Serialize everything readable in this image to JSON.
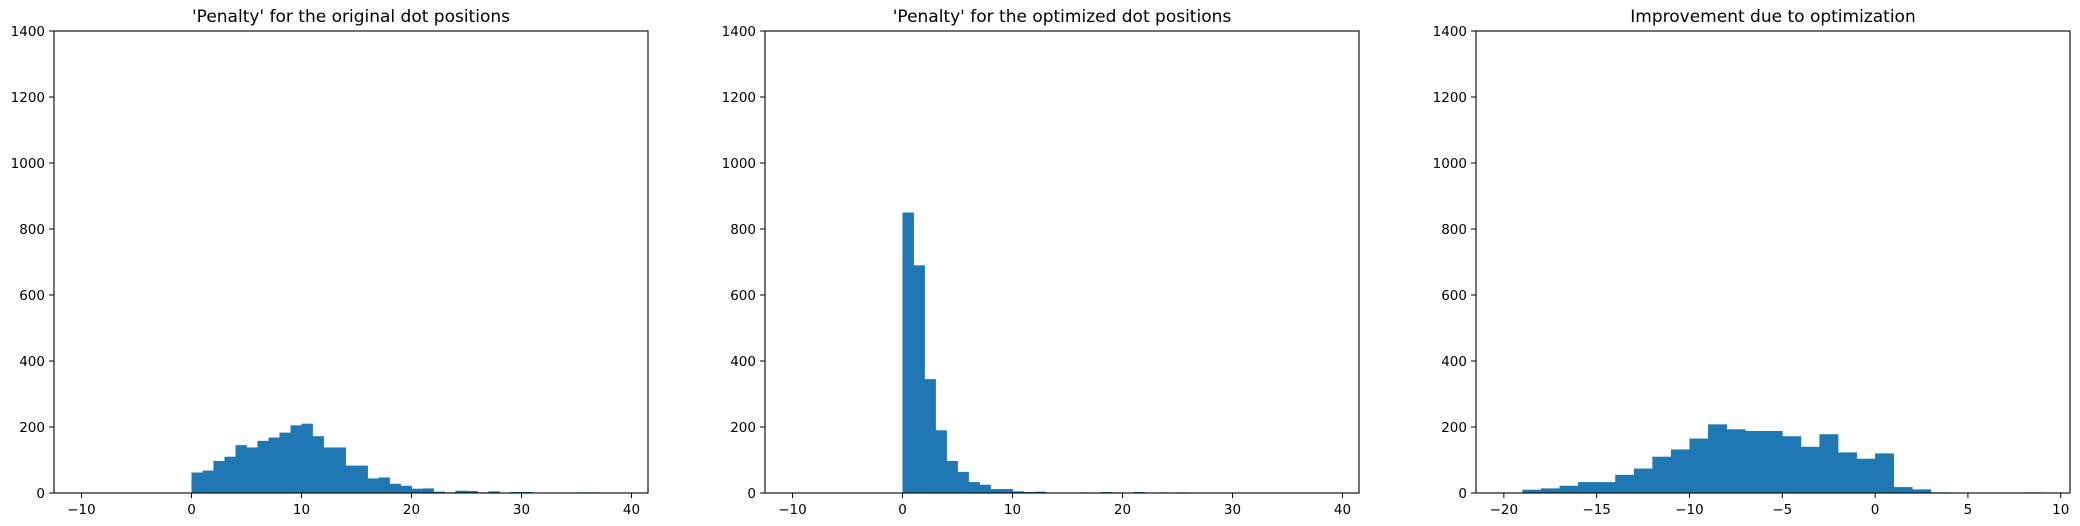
{
  "chart_data": [
    {
      "type": "bar",
      "title": "'Penalty' for the original dot positions",
      "xlabel": "",
      "ylabel": "",
      "xlim": [
        -12.5,
        41.5
      ],
      "ylim": [
        0,
        1400
      ],
      "xticks": [
        -10,
        0,
        10,
        20,
        30,
        40
      ],
      "yticks": [
        0,
        200,
        400,
        600,
        800,
        1000,
        1200,
        1400
      ],
      "bin_width": 1,
      "bins": [
        {
          "x0": 0,
          "value": 62
        },
        {
          "x0": 1,
          "value": 68
        },
        {
          "x0": 2,
          "value": 97
        },
        {
          "x0": 3,
          "value": 110
        },
        {
          "x0": 4,
          "value": 145
        },
        {
          "x0": 5,
          "value": 138
        },
        {
          "x0": 6,
          "value": 158
        },
        {
          "x0": 7,
          "value": 168
        },
        {
          "x0": 8,
          "value": 183
        },
        {
          "x0": 9,
          "value": 205
        },
        {
          "x0": 10,
          "value": 210
        },
        {
          "x0": 11,
          "value": 172
        },
        {
          "x0": 12,
          "value": 138
        },
        {
          "x0": 13,
          "value": 138
        },
        {
          "x0": 14,
          "value": 83
        },
        {
          "x0": 15,
          "value": 83
        },
        {
          "x0": 16,
          "value": 44
        },
        {
          "x0": 17,
          "value": 47
        },
        {
          "x0": 18,
          "value": 28
        },
        {
          "x0": 19,
          "value": 22
        },
        {
          "x0": 20,
          "value": 13
        },
        {
          "x0": 21,
          "value": 14
        },
        {
          "x0": 22,
          "value": 4
        },
        {
          "x0": 23,
          "value": 2
        },
        {
          "x0": 24,
          "value": 7
        },
        {
          "x0": 25,
          "value": 6
        },
        {
          "x0": 26,
          "value": 2
        },
        {
          "x0": 27,
          "value": 5
        },
        {
          "x0": 28,
          "value": 1
        },
        {
          "x0": 29,
          "value": 3
        },
        {
          "x0": 30,
          "value": 3
        },
        {
          "x0": 31,
          "value": 1
        },
        {
          "x0": 32,
          "value": 0
        },
        {
          "x0": 33,
          "value": 0
        },
        {
          "x0": 34,
          "value": 0
        },
        {
          "x0": 35,
          "value": 2
        },
        {
          "x0": 36,
          "value": 2
        }
      ],
      "color": "#1f77b4"
    },
    {
      "type": "bar",
      "title": "'Penalty' for the optimized dot positions",
      "xlabel": "",
      "ylabel": "",
      "xlim": [
        -12.5,
        41.5
      ],
      "ylim": [
        0,
        1400
      ],
      "xticks": [
        -10,
        0,
        10,
        20,
        30,
        40
      ],
      "yticks": [
        0,
        200,
        400,
        600,
        800,
        1000,
        1200,
        1400
      ],
      "bin_width": 1,
      "bins": [
        {
          "x0": 0,
          "value": 850
        },
        {
          "x0": 1,
          "value": 690
        },
        {
          "x0": 2,
          "value": 345
        },
        {
          "x0": 3,
          "value": 190
        },
        {
          "x0": 4,
          "value": 97
        },
        {
          "x0": 5,
          "value": 64
        },
        {
          "x0": 6,
          "value": 33
        },
        {
          "x0": 7,
          "value": 25
        },
        {
          "x0": 8,
          "value": 12
        },
        {
          "x0": 9,
          "value": 12
        },
        {
          "x0": 10,
          "value": 5
        },
        {
          "x0": 11,
          "value": 3
        },
        {
          "x0": 12,
          "value": 4
        },
        {
          "x0": 13,
          "value": 1
        },
        {
          "x0": 14,
          "value": 1
        },
        {
          "x0": 15,
          "value": 1
        },
        {
          "x0": 16,
          "value": 2
        },
        {
          "x0": 17,
          "value": 1
        },
        {
          "x0": 18,
          "value": 3
        },
        {
          "x0": 19,
          "value": 2
        },
        {
          "x0": 20,
          "value": 1
        },
        {
          "x0": 21,
          "value": 3
        },
        {
          "x0": 22,
          "value": 1
        },
        {
          "x0": 23,
          "value": 2
        },
        {
          "x0": 24,
          "value": 1
        },
        {
          "x0": 25,
          "value": 2
        }
      ],
      "color": "#1f77b4"
    },
    {
      "type": "bar",
      "title": "Improvement due to optimization",
      "xlabel": "",
      "ylabel": "",
      "xlim": [
        -21.5,
        10.5
      ],
      "ylim": [
        0,
        1400
      ],
      "xticks": [
        -20,
        -15,
        -10,
        -5,
        0,
        5,
        10
      ],
      "yticks": [
        0,
        200,
        400,
        600,
        800,
        1000,
        1200,
        1400
      ],
      "bin_width": 1,
      "bins": [
        {
          "x0": -19,
          "value": 10
        },
        {
          "x0": -18,
          "value": 14
        },
        {
          "x0": -17,
          "value": 22
        },
        {
          "x0": -16,
          "value": 33
        },
        {
          "x0": -15,
          "value": 33
        },
        {
          "x0": -14,
          "value": 55
        },
        {
          "x0": -13,
          "value": 74
        },
        {
          "x0": -12,
          "value": 110
        },
        {
          "x0": -11,
          "value": 132
        },
        {
          "x0": -10,
          "value": 165
        },
        {
          "x0": -9,
          "value": 208
        },
        {
          "x0": -8,
          "value": 193
        },
        {
          "x0": -7,
          "value": 188
        },
        {
          "x0": -6,
          "value": 188
        },
        {
          "x0": -5,
          "value": 172
        },
        {
          "x0": -4,
          "value": 140
        },
        {
          "x0": -3,
          "value": 178
        },
        {
          "x0": -2,
          "value": 123
        },
        {
          "x0": -1,
          "value": 104
        },
        {
          "x0": 0,
          "value": 120
        },
        {
          "x0": 1,
          "value": 18
        },
        {
          "x0": 2,
          "value": 11
        },
        {
          "x0": 3,
          "value": 2
        },
        {
          "x0": 8,
          "value": 2
        }
      ],
      "color": "#1f77b4"
    }
  ]
}
